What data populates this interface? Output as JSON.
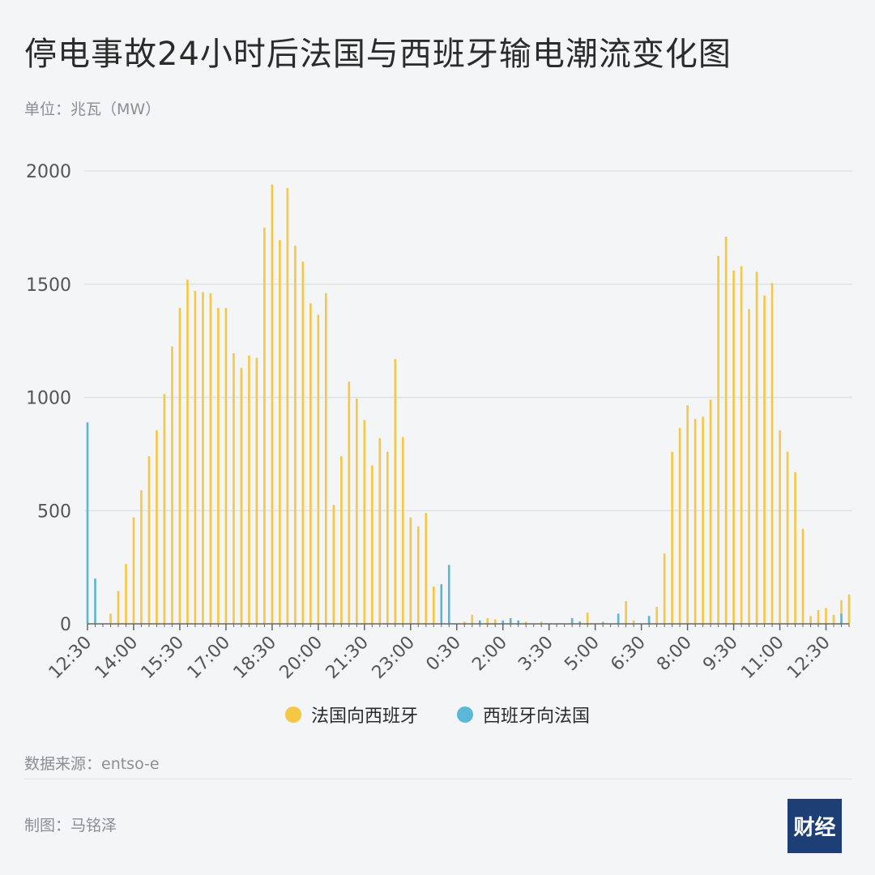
{
  "title": "停电事故24小时后法国与西班牙输电潮流变化图",
  "unit_label": "单位：兆瓦（MW）",
  "source": "数据来源：entso-e",
  "credit": "制图：马铭泽",
  "logo_text": "财经",
  "colors": {
    "france_to_spain": "#f6c744",
    "spain_to_france": "#5bb7d6",
    "grid": "#dce4e8",
    "axis": "#555555"
  },
  "chart_data": {
    "type": "bar",
    "title": "停电事故24小时后法国与西班牙输电潮流变化图",
    "ylabel": "单位：兆瓦（MW）",
    "ylim": [
      0,
      2000
    ],
    "yticks": [
      0,
      500,
      1000,
      1500,
      2000
    ],
    "grid": true,
    "legend_position": "bottom",
    "x_tick_labels": [
      "12:30",
      "14:00",
      "15:30",
      "17:00",
      "18:30",
      "20:00",
      "21:30",
      "23:00",
      "0:30",
      "2:00",
      "3:30",
      "5:00",
      "6:30",
      "8:00",
      "9:30",
      "11:00",
      "12:30"
    ],
    "x_tick_interval_slots": 6,
    "slot_minutes": 15,
    "series": [
      {
        "name": "法国向西班牙",
        "color": "#f6c744",
        "values": [
          0,
          0,
          0,
          45,
          145,
          265,
          470,
          590,
          740,
          855,
          1015,
          1225,
          1395,
          1520,
          1470,
          1465,
          1460,
          1395,
          1395,
          1195,
          1130,
          1185,
          1175,
          1750,
          1940,
          1695,
          1925,
          1670,
          1600,
          1415,
          1365,
          1460,
          525,
          740,
          1070,
          995,
          900,
          700,
          820,
          760,
          1170,
          825,
          470,
          430,
          490,
          165,
          0,
          0,
          0,
          10,
          40,
          15,
          25,
          20,
          0,
          15,
          0,
          10,
          0,
          10,
          0,
          0,
          0,
          20,
          10,
          50,
          0,
          10,
          0,
          0,
          100,
          15,
          0,
          35,
          75,
          310,
          760,
          865,
          965,
          905,
          915,
          990,
          1625,
          1710,
          1560,
          1580,
          1390,
          1555,
          1450,
          1505,
          855,
          760,
          670,
          420,
          35,
          60,
          70,
          40,
          105,
          130
        ]
      },
      {
        "name": "西班牙向法国",
        "color": "#5bb7d6",
        "values": [
          890,
          200,
          0,
          0,
          0,
          0,
          0,
          0,
          0,
          0,
          0,
          0,
          0,
          0,
          0,
          0,
          0,
          0,
          0,
          0,
          0,
          0,
          0,
          0,
          0,
          0,
          0,
          0,
          0,
          0,
          0,
          0,
          0,
          0,
          0,
          0,
          0,
          0,
          0,
          0,
          0,
          0,
          0,
          0,
          0,
          0,
          175,
          260,
          0,
          0,
          0,
          15,
          0,
          0,
          15,
          25,
          15,
          0,
          0,
          0,
          0,
          0,
          0,
          25,
          10,
          0,
          0,
          5,
          0,
          45,
          0,
          0,
          0,
          35,
          0,
          0,
          0,
          0,
          0,
          0,
          0,
          0,
          0,
          0,
          0,
          0,
          0,
          0,
          0,
          0,
          0,
          0,
          0,
          0,
          0,
          0,
          0,
          0,
          45,
          0,
          0
        ]
      }
    ]
  }
}
